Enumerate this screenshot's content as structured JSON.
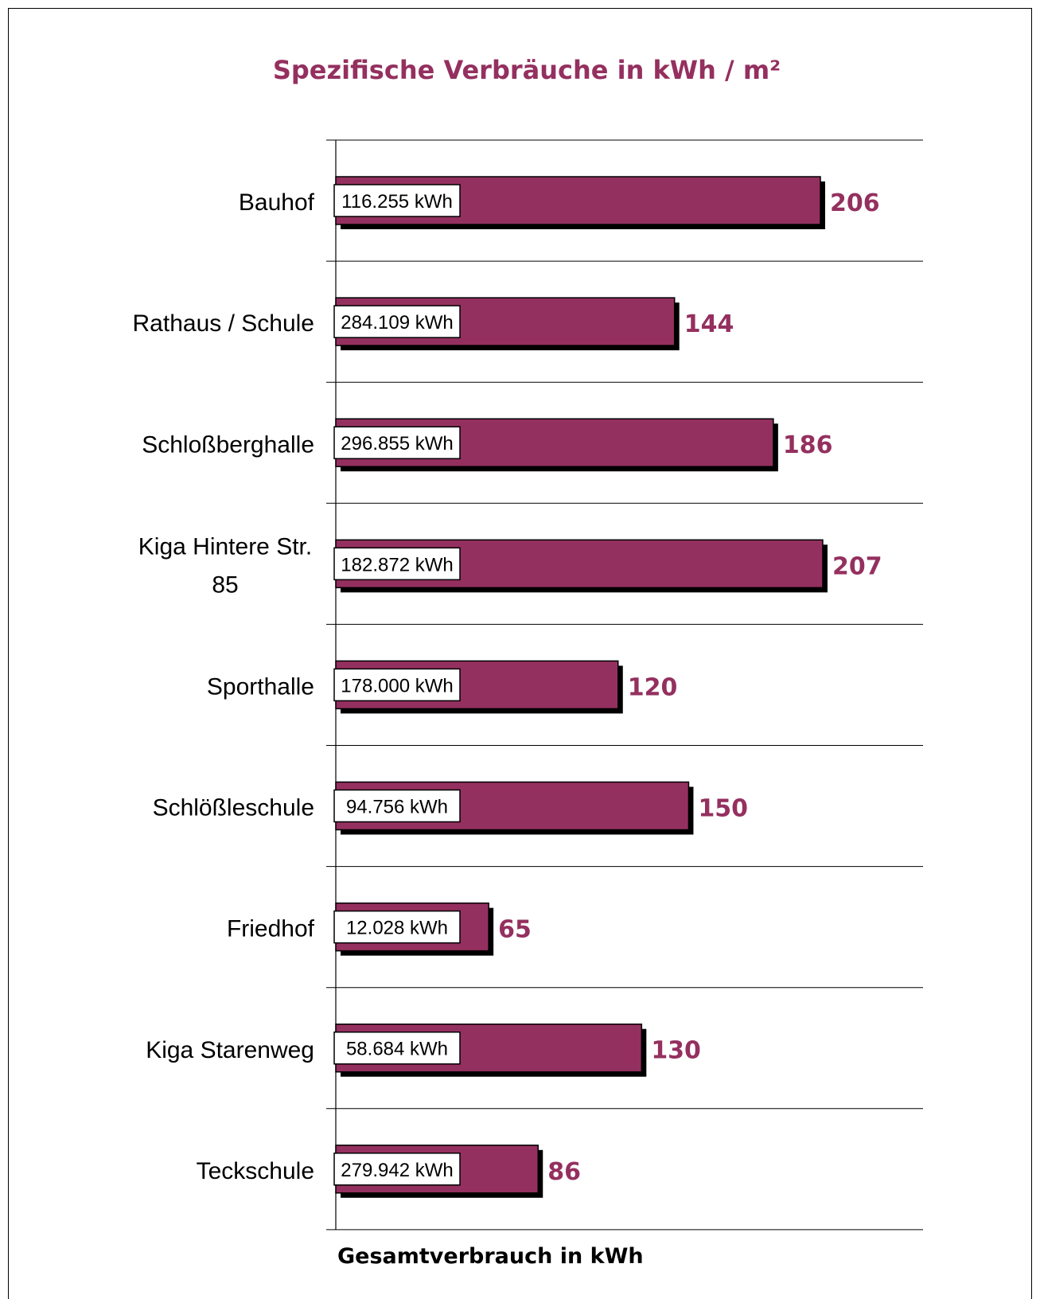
{
  "chart_data": {
    "type": "bar",
    "orientation": "horizontal",
    "title": "Spezifische Verbräuche in kWh / m²",
    "xlabel": "Gesamtverbrauch in kWh",
    "ylabel": "",
    "categories": [
      [
        "Bauhof"
      ],
      [
        "Rathaus / Schule"
      ],
      [
        "Schloßberghalle"
      ],
      [
        "Kiga Hintere Str.",
        "85"
      ],
      [
        "Sporthalle"
      ],
      [
        "Schlößleschule"
      ],
      [
        "Friedhof"
      ],
      [
        "Kiga Starenweg"
      ],
      [
        "Teckschule"
      ]
    ],
    "values": [
      206,
      144,
      186,
      207,
      120,
      150,
      65,
      130,
      86
    ],
    "totals": [
      "116.255 kWh",
      "284.109 kWh",
      "296.855 kWh",
      "182.872 kWh",
      "178.000 kWh",
      "94.756 kWh",
      "12.028 kWh",
      "58.684 kWh",
      "279.942 kWh"
    ],
    "xlim": [
      0,
      250
    ],
    "grid": true,
    "colors": {
      "bar": "#94305f",
      "shadow": "#000000",
      "value_label": "#94305f"
    }
  }
}
